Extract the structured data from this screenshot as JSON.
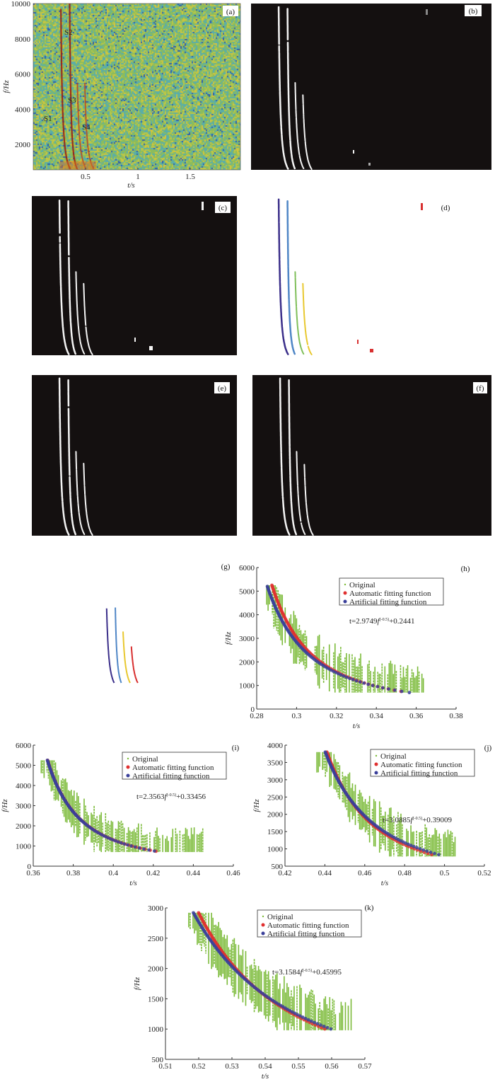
{
  "colors": {
    "original": "#7cbb3a",
    "automatic": "#e03030",
    "artificial": "#3a3f9a",
    "streak_d": [
      "#3b2f8a",
      "#4f86c6",
      "#7fbf5a",
      "#e8c830",
      "#d83030"
    ]
  },
  "chart_data": [
    {
      "id": "a",
      "type": "heatmap",
      "panel_label": "(a)",
      "xlabel": "t/s",
      "ylabel": "f/Hz",
      "xlim": [
        0,
        1.98
      ],
      "ylim": [
        560,
        10000
      ],
      "xticks": [
        "0.5",
        "1",
        "1.5"
      ],
      "xtick_values": [
        0.5,
        1,
        1.5
      ],
      "yticks": [
        "2000",
        "4000",
        "6000",
        "8000",
        "10000"
      ],
      "ytick_values": [
        2000,
        4000,
        6000,
        8000,
        10000
      ],
      "annotations": [
        "S1",
        "S2",
        "S3",
        "S4"
      ]
    },
    {
      "id": "b",
      "type": "image",
      "panel_label": "(b)"
    },
    {
      "id": "c",
      "type": "image",
      "panel_label": "(c)"
    },
    {
      "id": "d",
      "type": "image",
      "panel_label": "(d)"
    },
    {
      "id": "e",
      "type": "image",
      "panel_label": "(e)"
    },
    {
      "id": "f",
      "type": "image",
      "panel_label": "(f)"
    },
    {
      "id": "g",
      "type": "image",
      "panel_label": "(g)"
    },
    {
      "id": "h",
      "type": "scatter",
      "panel_label": "(h)",
      "xlabel": "t/s",
      "ylabel": "f/Hz",
      "xlim": [
        0.28,
        0.38
      ],
      "ylim": [
        0,
        6000
      ],
      "xticks": [
        "0.28",
        "0.3",
        "0.32",
        "0.34",
        "0.36",
        "0.38"
      ],
      "xtick_values": [
        0.28,
        0.3,
        0.32,
        0.34,
        0.36,
        0.38
      ],
      "yticks": [
        "0",
        "1000",
        "2000",
        "3000",
        "4000",
        "5000",
        "6000"
      ],
      "ytick_values": [
        0,
        1000,
        2000,
        3000,
        4000,
        5000,
        6000
      ],
      "legend": [
        "Original",
        "Automatic fitting function",
        "Artificial fitting function"
      ],
      "equation": {
        "prefix": "t=2.9749",
        "var": "f",
        "exp": "(-0.5)",
        "suffix": "+0.2441"
      },
      "artificial_fit": {
        "a": 2.9749,
        "b": 0.2441,
        "f_range": [
          700,
          5200
        ]
      },
      "automatic_fit": {
        "a": 2.85,
        "b": 0.2483,
        "f_range": [
          700,
          5250
        ]
      },
      "original": {
        "t_range": [
          0.285,
          0.364
        ],
        "f_range": [
          700,
          5250
        ]
      }
    },
    {
      "id": "i",
      "type": "scatter",
      "panel_label": "(i)",
      "xlabel": "t/s",
      "ylabel": "f/Hz",
      "xlim": [
        0.36,
        0.46
      ],
      "ylim": [
        0,
        6000
      ],
      "xticks": [
        "0.36",
        "0.38",
        "0.4",
        "0.42",
        "0.44",
        "0.46"
      ],
      "xtick_values": [
        0.36,
        0.38,
        0.4,
        0.42,
        0.44,
        0.46
      ],
      "yticks": [
        "0",
        "1000",
        "2000",
        "3000",
        "4000",
        "5000",
        "6000"
      ],
      "ytick_values": [
        0,
        1000,
        2000,
        3000,
        4000,
        5000,
        6000
      ],
      "legend": [
        "Original",
        "Automatic fitting function",
        "Artificial fitting function"
      ],
      "equation": {
        "prefix": "t=2.3563",
        "var": "f",
        "exp": "(-0.5)",
        "suffix": "+0.33456"
      },
      "artificial_fit": {
        "a": 2.3563,
        "b": 0.33456,
        "f_range": [
          700,
          5250
        ]
      },
      "automatic_fit": {
        "a": 2.36,
        "b": 0.3346,
        "f_range": [
          690,
          5250
        ]
      },
      "original": {
        "t_range": [
          0.364,
          0.445
        ],
        "f_range": [
          700,
          5250
        ]
      }
    },
    {
      "id": "j",
      "type": "scatter",
      "panel_label": "(j)",
      "xlabel": "t/s",
      "ylabel": "f/Hz",
      "xlim": [
        0.42,
        0.52
      ],
      "ylim": [
        500,
        4000
      ],
      "xticks": [
        "0.42",
        "0.44",
        "0.46",
        "0.48",
        "0.5",
        "0.52"
      ],
      "xtick_values": [
        0.42,
        0.44,
        0.46,
        0.48,
        0.5,
        0.52
      ],
      "yticks": [
        "500",
        "1000",
        "1500",
        "2000",
        "2500",
        "3000",
        "3500",
        "4000"
      ],
      "ytick_values": [
        500,
        1000,
        1500,
        2000,
        2500,
        3000,
        3500,
        4000
      ],
      "legend": [
        "Original",
        "Automatic fitting function",
        "Artificial fitting function"
      ],
      "equation": {
        "prefix": "t=3.0885",
        "var": "f",
        "exp": "(-0.5)",
        "suffix": "+0.39009"
      },
      "artificial_fit": {
        "a": 3.0885,
        "b": 0.39009,
        "f_range": [
          800,
          3800
        ]
      },
      "automatic_fit": {
        "a": 2.85,
        "b": 0.3948,
        "f_range": [
          800,
          3800
        ]
      },
      "original": {
        "t_range": [
          0.436,
          0.506
        ],
        "f_range": [
          780,
          3800
        ]
      }
    },
    {
      "id": "k",
      "type": "scatter",
      "panel_label": "(k)",
      "xlabel": "t/s",
      "ylabel": "f/Hz",
      "xlim": [
        0.51,
        0.57
      ],
      "ylim": [
        500,
        3000
      ],
      "xticks": [
        "0.51",
        "0.52",
        "0.53",
        "0.54",
        "0.55",
        "0.56",
        "0.57"
      ],
      "xtick_values": [
        0.51,
        0.52,
        0.53,
        0.54,
        0.55,
        0.56,
        0.57
      ],
      "yticks": [
        "500",
        "1000",
        "1500",
        "2000",
        "2500",
        "3000"
      ],
      "ytick_values": [
        500,
        1000,
        1500,
        2000,
        2500,
        3000
      ],
      "legend": [
        "Original",
        "Automatic fitting function",
        "Artificial fitting function"
      ],
      "equation": {
        "prefix": "t=3.1584",
        "var": "f",
        "exp": "(-0.5)",
        "suffix": "+0.45995"
      },
      "artificial_fit": {
        "a": 3.1584,
        "b": 0.45995,
        "f_range": [
          980,
          2920
        ]
      },
      "automatic_fit": {
        "a": 2.9,
        "b": 0.4663,
        "f_range": [
          980,
          2920
        ]
      },
      "original": {
        "t_range": [
          0.517,
          0.566
        ],
        "f_range": [
          980,
          2920
        ]
      }
    }
  ]
}
